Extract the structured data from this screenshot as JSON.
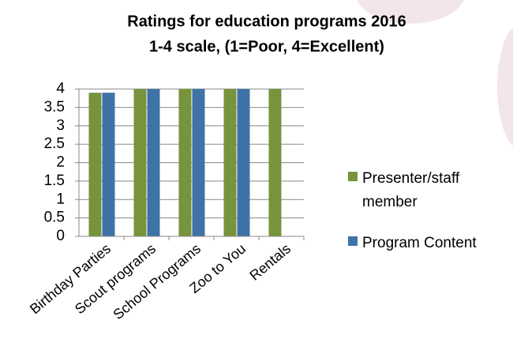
{
  "chart_data": {
    "type": "bar",
    "title": [
      "Ratings for education programs 2016",
      "1-4 scale, (1=Poor, 4=Excellent)"
    ],
    "categories": [
      "Birthday Parties",
      "Scout programs",
      "School Programs",
      "Zoo to You",
      "Rentals"
    ],
    "series": [
      {
        "name": "Presenter/staff member",
        "color": "#77933c",
        "values": [
          3.9,
          4,
          4,
          4,
          4
        ]
      },
      {
        "name": "Program Content",
        "color": "#3f72a6",
        "values": [
          3.9,
          4,
          4,
          4,
          null
        ]
      }
    ],
    "ylim": [
      0,
      4
    ],
    "yticks": [
      0,
      0.5,
      1,
      1.5,
      2,
      2.5,
      3,
      3.5,
      4
    ],
    "grid": true,
    "legend": "right"
  }
}
